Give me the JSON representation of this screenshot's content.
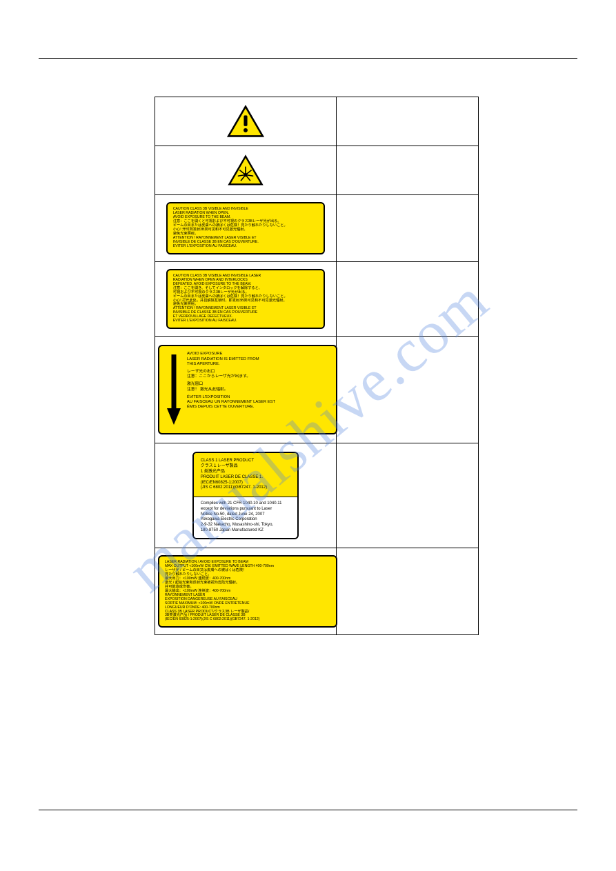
{
  "watermark": "manualshive.com",
  "labels": {
    "caution1": {
      "lines": [
        "CAUTION  CLASS 3B VISIBLE AND INVISIBLE",
        "LASER RADIATION WHEN OPEN.",
        "AVOID EXPOSURE TO THE BEAM.",
        "注意：ここを開くと可視および不可視のクラス3Bレーザ光が出る。",
        "ビームの目または皮膚への被ばくは危険！見たり触れたりしないこと。",
        "小心!  开时则发射3B类可见和不可见激光辐射。",
        "避免光束照射。",
        "ATTENTION ! RAYONNEMENT LASER VISIBLE ET",
        "INVISIBLE DE CLASSE 3B EN CAS D'OUVERTURE.",
        "EVITER L'EXPOSITION AU FAISCEAU."
      ]
    },
    "caution2": {
      "lines": [
        "CAUTION  CLASS 3B VISIBLE AND INVISIBLE LASER",
        "RADIATION WHEN OPEN AND INTERLOCKS",
        "DEFEATED. AVOID EXPOSURE TO THE BEAM.",
        "注意：ここを開き、そしてインタロックを解除すると、",
        "可視および不可視のクラス3Bレーザ光が出る。",
        "ビームの目または皮膚への被ばくは危険！見たり触れたりしないこと。",
        "小心! 打开此处，并且解除互锁时，即发射3B类可见和不可见激光辐射。",
        "避免光束照射。",
        "ATTENTION ! RAYONNEMENT LASER VISIBLE ET",
        "INVISIBLE DE CLASSE 3B EN CAS D'OUVERTURE",
        "ET VERROUILLAGE DEFECTUEUX.",
        "EVITER L'EXPOSITION AU FAISCEAU."
      ]
    },
    "aperture": {
      "lines": [
        "AVOID EXPOSURE",
        "LASER RADIATION IS EMITTED FROM",
        "THIS APERTURE.",
        "",
        "レーザ光の出口",
        "注意：ここからレーザ光が出ます。",
        "",
        "激光窗口",
        "注意！ 激光从此辐射。",
        "",
        "ÉVITER L'EXPOSITION",
        "AU FAISCEAU UN RAYONNEMENT LASER EST",
        "ÉMIS DEPUIS CETTE OUVERTURE."
      ]
    },
    "class1": {
      "top": [
        "CLASS 1 LASER PRODUCT",
        "クラス１レーザ製品",
        "1 类激光产品",
        "PRODUIT LASER DE CLASSE 1.",
        "(IEC/EN60825-1:2007)",
        "(JIS C 6802:2011)(GB7247. 1-2012)"
      ],
      "bot": [
        "Complies with 21 CFR 1040.10 and 1040.11",
        "except for deviations pursuant to Laser",
        "Notice No.50, dated June 24, 2007",
        "Yokogawa Electric Corporation",
        "2-9-32 Nakacho, Musashino-shi, Tokyo,",
        "180-8750 Japan Manufactured KZ"
      ]
    },
    "radiation": {
      "lines": [
        "LASER RADIATION / AVOID EXPOSURE TO BEAM",
        "MAX OUTPUT <100mW CW. EMITTED WAVE LENGTH 400-700nm",
        "レーザ光 / ビームの目又は皮膚への被ばくは危険！",
        "見たり触れたりしないこと。",
        "最大出力：<100mW 連続波：400-700nm",
        "激光 / 起始光束和反射光束被视为危险光辐射。",
        "并可能造成伤害。",
        "最大输出：<100mW 连续波：400-700nm",
        "RAYONNEMENT LASER",
        "EXPOSITION DANGEREUSE AU FAISCEAU",
        "SORTIE MAXIMUM: <100mW ONDE ENTRETENUE",
        "LONGUEUR D'ONDE: 400-700nm",
        "CLASS 3B LASER PRODUCT/クラス3B レーザ製品/",
        "3B类激光产品 / PRODUIT LASER DE CLASSE 3B",
        "(IEC/EN 60825-1:2007)(JIS C 6802:2011)(GB7247. 1-2012)"
      ]
    }
  },
  "colors": {
    "yellow": "#ffe600",
    "black": "#000000",
    "watermark": "rgba(80,130,220,.32)"
  }
}
